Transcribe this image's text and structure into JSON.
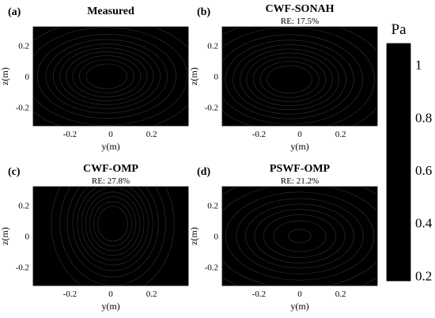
{
  "chart_data": [
    {
      "type": "heatmap",
      "panel_label": "(a)",
      "title": "Measured",
      "subtitle": "",
      "xlabel": "y(m)",
      "ylabel": "z(m)",
      "xticks": [
        "-0.2",
        "0",
        "0.2"
      ],
      "yticks": [
        "0.2",
        "0",
        "-0.2"
      ],
      "xlim": [
        -0.38,
        0.38
      ],
      "ylim": [
        -0.32,
        0.32
      ],
      "peak": {
        "y": -0.02,
        "z": 0.0,
        "value": 1.05
      },
      "spread": {
        "y": 0.2,
        "z": 0.16
      }
    },
    {
      "type": "heatmap",
      "panel_label": "(b)",
      "title": "CWF-SONAH",
      "subtitle": "RE: 17.5%",
      "xlabel": "y(m)",
      "ylabel": "z(m)",
      "xticks": [
        "-0.2",
        "0",
        "0.2"
      ],
      "yticks": [
        "0.2",
        "0",
        "-0.2"
      ],
      "xlim": [
        -0.38,
        0.38
      ],
      "ylim": [
        -0.32,
        0.32
      ],
      "peak": {
        "y": -0.05,
        "z": -0.02,
        "value": 1.06
      },
      "spread": {
        "y": 0.21,
        "z": 0.17
      }
    },
    {
      "type": "heatmap",
      "panel_label": "(c)",
      "title": "CWF-OMP",
      "subtitle": "RE: 27.8%",
      "xlabel": "y(m)",
      "ylabel": "z(m)",
      "xticks": [
        "-0.2",
        "0",
        "0.2"
      ],
      "yticks": [
        "0.2",
        "0",
        "-0.2"
      ],
      "xlim": [
        -0.38,
        0.38
      ],
      "ylim": [
        -0.32,
        0.32
      ],
      "peak": {
        "y": 0.01,
        "z": 0.08,
        "value": 1.08
      },
      "spread": {
        "y": 0.13,
        "z": 0.2
      }
    },
    {
      "type": "heatmap",
      "panel_label": "(d)",
      "title": "PSWF-OMP",
      "subtitle": "RE: 21.2%",
      "xlabel": "y(m)",
      "ylabel": "z(m)",
      "xticks": [
        "-0.2",
        "0",
        "0.2"
      ],
      "yticks": [
        "0.2",
        "0",
        "-0.2"
      ],
      "xlim": [
        -0.38,
        0.38
      ],
      "ylim": [
        -0.32,
        0.32
      ],
      "peak": {
        "y": 0.0,
        "z": 0.0,
        "value": 0.9
      },
      "spread": {
        "y": 0.23,
        "z": 0.18
      }
    }
  ],
  "colorbar": {
    "label": "Pa",
    "ticks": [
      "1",
      "0.8",
      "0.6",
      "0.4",
      "0.2"
    ],
    "tick_values": [
      1.0,
      0.8,
      0.6,
      0.4,
      0.2
    ],
    "range": [
      0.18,
      1.08
    ],
    "colormap": "hot"
  }
}
